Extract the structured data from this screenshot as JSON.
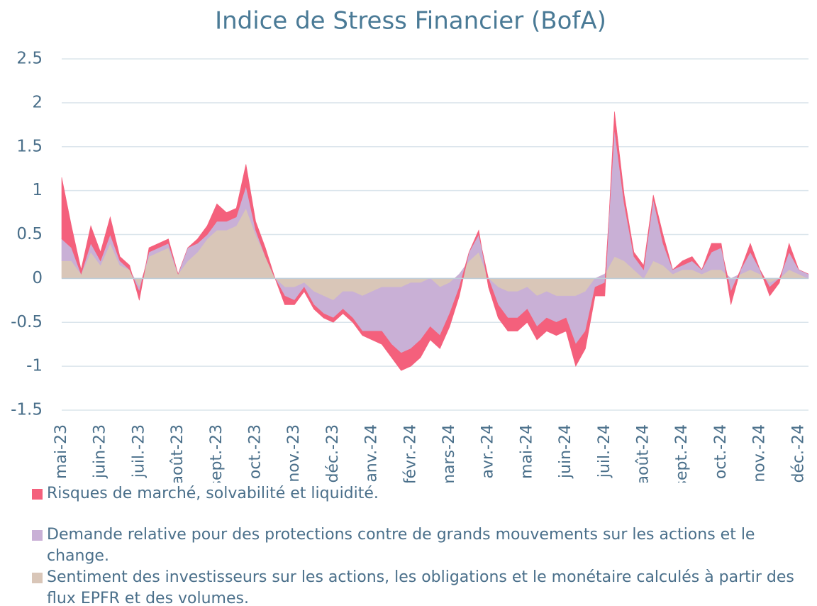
{
  "chart_data": {
    "type": "area",
    "stacked": true,
    "title": "Indice de Stress Financier (BofA)",
    "categories": [
      "mai-23",
      null,
      null,
      null,
      "juin-23",
      null,
      null,
      null,
      "juil.-23",
      null,
      null,
      null,
      "août-23",
      null,
      null,
      null,
      "sept.-23",
      null,
      null,
      null,
      "oct.-23",
      null,
      null,
      null,
      "nov.-23",
      null,
      null,
      null,
      "déc.-23",
      null,
      null,
      null,
      "janv.-24",
      null,
      null,
      null,
      "févr.-24",
      null,
      null,
      null,
      "mars-24",
      null,
      null,
      null,
      "avr.-24",
      null,
      null,
      null,
      "mai-24",
      null,
      null,
      null,
      "juin-24",
      null,
      null,
      null,
      "juil.-24",
      null,
      null,
      null,
      "août-24",
      null,
      null,
      null,
      "sept.-24",
      null,
      null,
      null,
      "oct.-24",
      null,
      null,
      null,
      "nov.-24",
      null,
      null,
      null,
      "déc.-24",
      null
    ],
    "series": [
      {
        "name": "Risques de marché, solvabilité et liquidité.",
        "color": "#f4607c",
        "values": [
          0.7,
          0.25,
          0.05,
          0.2,
          0.1,
          0.2,
          0.05,
          0.05,
          -0.1,
          0.05,
          0.05,
          0.05,
          0.0,
          0.0,
          0.05,
          0.1,
          0.2,
          0.1,
          0.1,
          0.25,
          0.1,
          0.1,
          0.0,
          -0.1,
          -0.05,
          -0.05,
          -0.05,
          -0.05,
          -0.05,
          -0.05,
          -0.05,
          -0.05,
          -0.1,
          -0.15,
          -0.15,
          -0.2,
          -0.2,
          -0.2,
          -0.15,
          -0.15,
          -0.15,
          -0.1,
          0.0,
          0.05,
          -0.1,
          -0.15,
          -0.15,
          -0.15,
          -0.15,
          -0.15,
          -0.15,
          -0.15,
          -0.15,
          -0.25,
          -0.2,
          -0.1,
          -0.15,
          0.2,
          0.1,
          0.05,
          0.05,
          0.05,
          0.1,
          0.0,
          0.05,
          0.05,
          0.0,
          0.1,
          0.05,
          -0.15,
          0.0,
          0.1,
          0.0,
          -0.1,
          -0.05,
          0.1,
          0.0,
          0.0
        ]
      },
      {
        "name": "Demande relative pour des protections contre de grands mouvements sur les actions et le change.",
        "color": "#c9b0d6",
        "values": [
          0.25,
          0.15,
          0.0,
          0.1,
          0.05,
          0.1,
          0.05,
          0.0,
          -0.05,
          0.05,
          0.05,
          0.05,
          0.0,
          0.15,
          0.1,
          0.05,
          0.1,
          0.1,
          0.1,
          0.25,
          0.05,
          0.0,
          0.0,
          -0.1,
          -0.15,
          -0.05,
          -0.15,
          -0.2,
          -0.2,
          -0.2,
          -0.3,
          -0.4,
          -0.45,
          -0.5,
          -0.65,
          -0.75,
          -0.75,
          -0.65,
          -0.55,
          -0.55,
          -0.35,
          -0.15,
          0.1,
          0.2,
          0.0,
          -0.2,
          -0.3,
          -0.3,
          -0.25,
          -0.35,
          -0.3,
          -0.3,
          -0.25,
          -0.55,
          -0.45,
          -0.1,
          -0.1,
          1.45,
          0.65,
          0.15,
          0.1,
          0.7,
          0.25,
          0.05,
          0.05,
          0.1,
          0.05,
          0.2,
          0.25,
          -0.15,
          0.05,
          0.2,
          0.05,
          -0.05,
          0.0,
          0.2,
          0.05,
          0.05
        ]
      },
      {
        "name": "Sentiment des investisseurs sur les actions, les obligations et le monétaire calculés à partir des flux EPFR et des volumes.",
        "color": "#d9c6b8",
        "values": [
          0.2,
          0.2,
          0.05,
          0.3,
          0.15,
          0.4,
          0.15,
          0.1,
          -0.1,
          0.25,
          0.3,
          0.35,
          0.05,
          0.2,
          0.3,
          0.45,
          0.55,
          0.55,
          0.6,
          0.8,
          0.5,
          0.25,
          0.0,
          -0.1,
          -0.1,
          -0.05,
          -0.15,
          -0.2,
          -0.25,
          -0.15,
          -0.15,
          -0.2,
          -0.15,
          -0.1,
          -0.1,
          -0.1,
          -0.05,
          -0.05,
          0.0,
          -0.1,
          -0.05,
          0.05,
          0.2,
          0.3,
          0.0,
          -0.1,
          -0.15,
          -0.15,
          -0.1,
          -0.2,
          -0.15,
          -0.2,
          -0.2,
          -0.2,
          -0.15,
          0.0,
          0.05,
          0.25,
          0.2,
          0.1,
          0.0,
          0.2,
          0.15,
          0.05,
          0.1,
          0.1,
          0.05,
          0.1,
          0.1,
          0.0,
          0.05,
          0.1,
          0.05,
          -0.05,
          0.0,
          0.1,
          0.05,
          0.0
        ]
      }
    ],
    "ylim": [
      -1.5,
      2.5
    ],
    "yticks": [
      -1.5,
      -1,
      -0.5,
      0,
      0.5,
      1,
      1.5,
      2,
      2.5
    ],
    "grid": true
  }
}
